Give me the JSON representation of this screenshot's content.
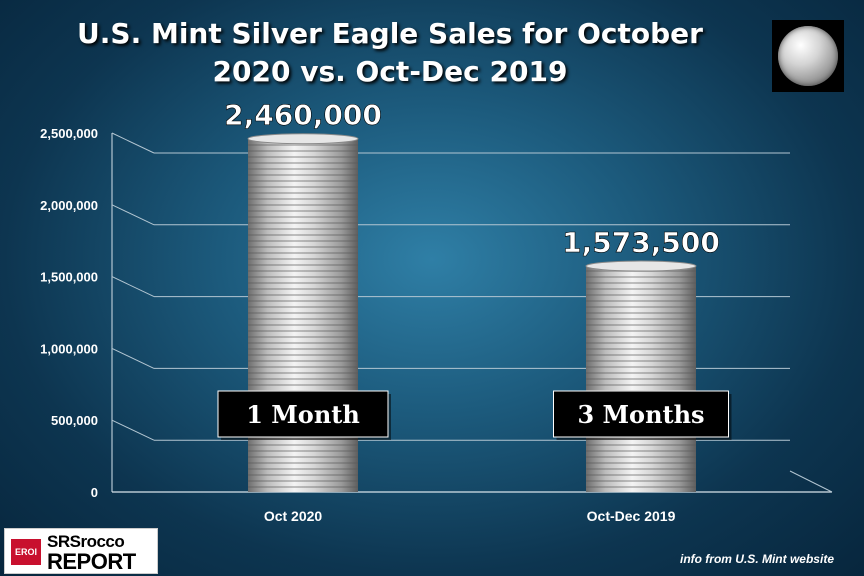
{
  "header": {
    "title_line1": "U.S. Mint Silver Eagle Sales for October",
    "title_line2": "2020 vs. Oct-Dec 2019"
  },
  "brand": {
    "logo_badge": "EROI",
    "logo_line1": "SRSrocco",
    "logo_line2": "REPORT",
    "source_note": "info from U.S. Mint website"
  },
  "icons": {
    "corner_image": "silver-eagle-coin-icon"
  },
  "colors": {
    "background": "#1c5a7c",
    "text": "#ffffff",
    "grid": "#9fb6c4",
    "bar": "#c9c9c9",
    "label_box": "#000000"
  },
  "chart_data": {
    "type": "bar",
    "title": "U.S. Mint Silver Eagle Sales for October 2020 vs. Oct-Dec 2019",
    "categories": [
      "Oct 2020",
      "Oct-Dec 2019"
    ],
    "values": [
      2460000,
      1573500
    ],
    "value_labels": [
      "2,460,000",
      "1,573,500"
    ],
    "bar_annotations": [
      "1 Month",
      "3 Months"
    ],
    "ylim": [
      0,
      2500000
    ],
    "yticks": [
      0,
      500000,
      1000000,
      1500000,
      2000000,
      2500000
    ],
    "ytick_labels": [
      "0",
      "500,000",
      "1,000,000",
      "1,500,000",
      "2,000,000",
      "2,500,000"
    ],
    "xlabel": "",
    "ylabel": "",
    "grid": true
  }
}
